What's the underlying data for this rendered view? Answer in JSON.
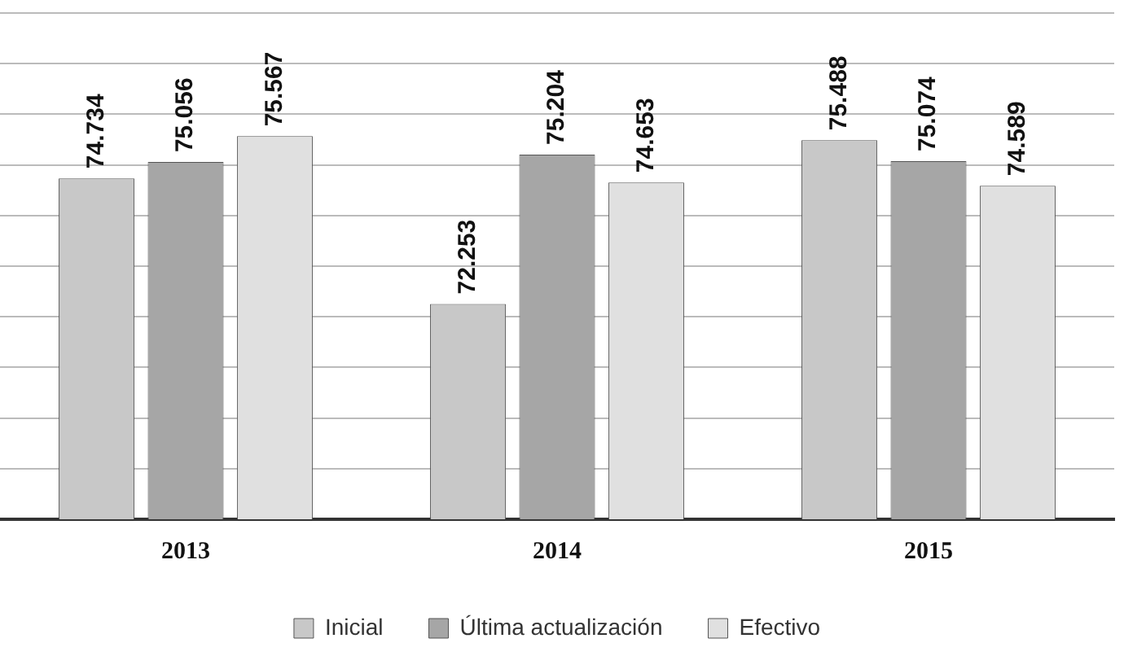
{
  "chart_data": {
    "type": "bar",
    "categories": [
      "2013",
      "2014",
      "2015"
    ],
    "series": [
      {
        "name": "Inicial",
        "color": "#c8c8c8",
        "values": [
          74.734,
          72.253,
          75.488
        ],
        "value_labels": [
          "74.734",
          "72.253",
          "75.488"
        ]
      },
      {
        "name": "Última actualización",
        "color": "#a6a6a6",
        "values": [
          75.056,
          75.204,
          75.074
        ],
        "value_labels": [
          "75.056",
          "75.204",
          "75.074"
        ]
      },
      {
        "name": "Efectivo",
        "color": "#e0e0e0",
        "values": [
          75.567,
          74.653,
          74.589
        ],
        "value_labels": [
          "75.567",
          "74.653",
          "74.589"
        ]
      }
    ],
    "ylim": [
      68,
      78
    ],
    "yticks": [
      68,
      69,
      70,
      71,
      72,
      73,
      74,
      75,
      76,
      77,
      78
    ],
    "tick_labels": "x",
    "grid": "y",
    "legend": "bottom"
  }
}
